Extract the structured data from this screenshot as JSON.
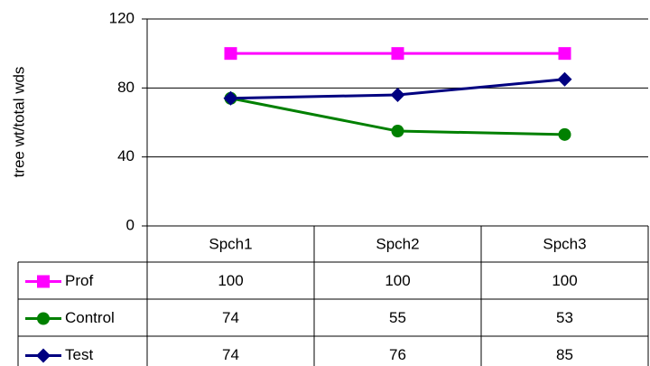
{
  "chart_data": {
    "type": "line",
    "y_label": "tree wt/total wds",
    "categories": [
      "Spch1",
      "Spch2",
      "Spch3"
    ],
    "series": [
      {
        "name": "Prof",
        "color": "#ff00ff",
        "marker": "square",
        "values": [
          100,
          100,
          100
        ]
      },
      {
        "name": "Control",
        "color": "#008000",
        "marker": "circle",
        "values": [
          74,
          55,
          53
        ]
      },
      {
        "name": "Test",
        "color": "#000080",
        "marker": "diamond",
        "values": [
          74,
          76,
          85
        ]
      }
    ],
    "ylim": [
      0,
      120
    ],
    "yticks": [
      0,
      40,
      80,
      120
    ],
    "grid": true,
    "data_table": true
  }
}
